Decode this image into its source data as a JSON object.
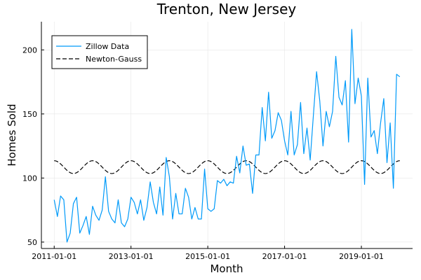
{
  "chart_data": {
    "type": "line",
    "title": "Trenton, New Jersey",
    "xlabel": "Month",
    "ylabel": "Homes Sold",
    "x_start": "2011-01-01",
    "x_ticks": [
      "2011-01-01",
      "2013-01-01",
      "2015-01-01",
      "2017-01-01",
      "2019-01-01"
    ],
    "y_ticks": [
      50,
      100,
      150,
      200
    ],
    "ylim": [
      45,
      222
    ],
    "grid": true,
    "legend_position": "top-left",
    "series": [
      {
        "name": "Zillow Data",
        "color": "#009af9",
        "style": "solid",
        "values": [
          83,
          70,
          86,
          83,
          50,
          57,
          80,
          85,
          57,
          63,
          70,
          56,
          78,
          71,
          67,
          75,
          101,
          74,
          68,
          65,
          83,
          65,
          62,
          68,
          85,
          81,
          72,
          83,
          67,
          77,
          97,
          81,
          72,
          93,
          71,
          116,
          101,
          68,
          88,
          72,
          72,
          92,
          85,
          68,
          77,
          68,
          68,
          107,
          76,
          74,
          76,
          98,
          96,
          99,
          94,
          97,
          96,
          117,
          104,
          125,
          110,
          111,
          88,
          118,
          118,
          155,
          129,
          167,
          131,
          137,
          151,
          145,
          129,
          118,
          152,
          118,
          126,
          159,
          119,
          139,
          114,
          149,
          183,
          160,
          125,
          152,
          140,
          152,
          195,
          163,
          157,
          176,
          128,
          216,
          158,
          178,
          164,
          95,
          178,
          132,
          137,
          119,
          143,
          162,
          112,
          143,
          92,
          181,
          179
        ]
      },
      {
        "name": "Newton-Gauss",
        "color": "#000000",
        "style": "dashed",
        "mean": 108.5,
        "amplitude": 5,
        "period_months": 12
      }
    ]
  }
}
